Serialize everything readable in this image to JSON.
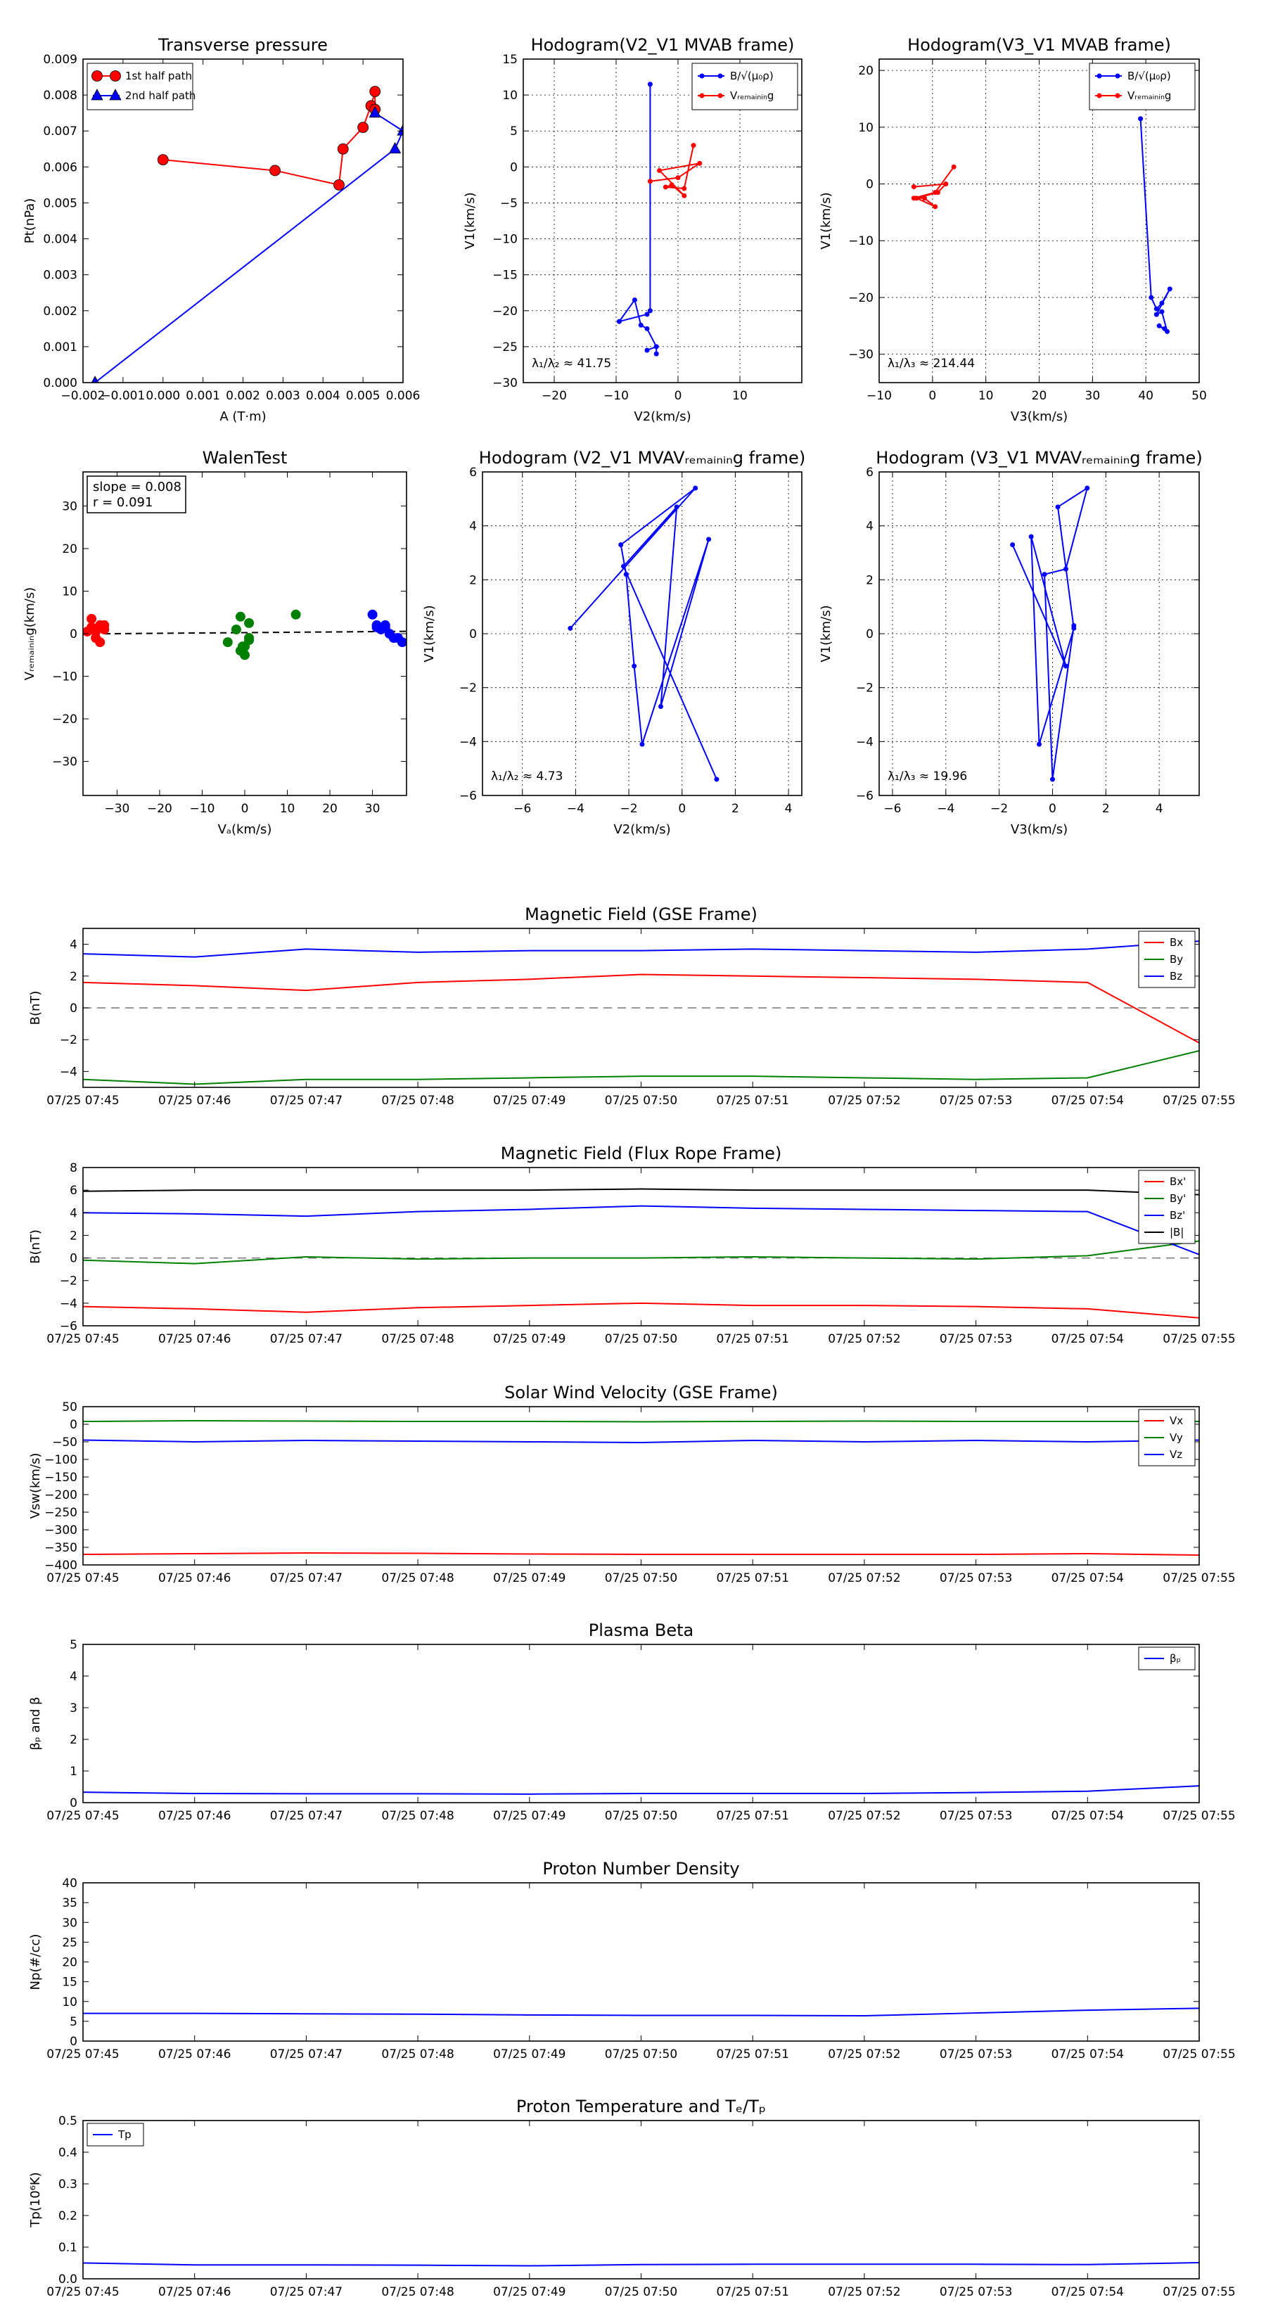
{
  "chart_data": [
    {
      "id": "p1",
      "type": "line",
      "title": "Transverse pressure",
      "xlabel": "A (T·m)",
      "ylabel": "Pt(nPa)",
      "xlim": [
        -0.002,
        0.006
      ],
      "ylim": [
        0,
        0.009
      ],
      "xticks": [
        -0.002,
        -0.001,
        0.0,
        0.001,
        0.002,
        0.003,
        0.004,
        0.005,
        0.006
      ],
      "xtick_labels": [
        "−0.002",
        "−0.001",
        "0.000",
        "0.001",
        "0.002",
        "0.003",
        "0.004",
        "0.005",
        "0.006"
      ],
      "yticks": [
        0,
        0.001,
        0.002,
        0.003,
        0.004,
        0.005,
        0.006,
        0.007,
        0.008,
        0.009
      ],
      "ytick_labels": [
        "0.000",
        "0.001",
        "0.002",
        "0.003",
        "0.004",
        "0.005",
        "0.006",
        "0.007",
        "0.008",
        "0.009"
      ],
      "grid": false,
      "legend": "top-left",
      "series": [
        {
          "name": "1st half path",
          "color": "#ff0000",
          "marker": "circle",
          "x": [
            0.0,
            0.0028,
            0.0044,
            0.0045,
            0.005,
            0.0052,
            0.0053,
            0.0053
          ],
          "y": [
            0.0062,
            0.0059,
            0.0055,
            0.0065,
            0.0071,
            0.0077,
            0.0081,
            0.0076
          ]
        },
        {
          "name": "2nd half path",
          "color": "#0000ff",
          "marker": "triangle",
          "x": [
            -0.0017,
            0.0058,
            0.006,
            0.0053
          ],
          "y": [
            0.0,
            0.0065,
            0.007,
            0.0075
          ]
        }
      ]
    },
    {
      "id": "p2",
      "type": "line",
      "title": "Hodogram(V2_V1 MVAB frame)",
      "xlabel": "V2(km/s)",
      "ylabel": "V1(km/s)",
      "xlim": [
        -25,
        20
      ],
      "ylim": [
        -30,
        15
      ],
      "xticks": [
        -20,
        -10,
        0,
        10
      ],
      "xtick_labels": [
        "−20",
        "−10",
        "0",
        "10"
      ],
      "yticks": [
        -30,
        -25,
        -20,
        -15,
        -10,
        -5,
        0,
        5,
        10,
        15
      ],
      "ytick_labels": [
        "−30",
        "−25",
        "−20",
        "−15",
        "−10",
        "−5",
        "0",
        "5",
        "10",
        "15"
      ],
      "grid": true,
      "legend": "top-right",
      "annotation": "λ₁/λ₂ ≈ 41.75",
      "series": [
        {
          "name": "B/√(μ₀ρ)",
          "color": "#0000ff",
          "marker": "dot",
          "x": [
            -4.5,
            -4.5,
            -5,
            -9.5,
            -7,
            -6,
            -5,
            -3.5,
            -5,
            -3.5,
            -3.5
          ],
          "y": [
            11.5,
            -20,
            -20.5,
            -21.5,
            -18.5,
            -22,
            -22.5,
            -25,
            -25.5,
            -25,
            -26
          ]
        },
        {
          "name": "Vᵣₑₘₐᵢₙᵢₙg",
          "color": "#ff0000",
          "marker": "dot",
          "x": [
            -4.5,
            0,
            3.5,
            -3,
            1,
            -1,
            -2,
            1,
            2.5
          ],
          "y": [
            -2,
            -1.5,
            0.5,
            -0.5,
            -4,
            -2.5,
            -2.8,
            -3,
            3
          ]
        }
      ]
    },
    {
      "id": "p3",
      "type": "line",
      "title": "Hodogram(V3_V1 MVAB frame)",
      "xlabel": "V3(km/s)",
      "ylabel": "V1(km/s)",
      "xlim": [
        -10,
        50
      ],
      "ylim": [
        -35,
        22
      ],
      "xticks": [
        -10,
        0,
        10,
        20,
        30,
        40,
        50
      ],
      "xtick_labels": [
        "−10",
        "0",
        "10",
        "20",
        "30",
        "40",
        "50"
      ],
      "yticks": [
        -30,
        -20,
        -10,
        0,
        10,
        20
      ],
      "ytick_labels": [
        "−30",
        "−20",
        "−10",
        "0",
        "10",
        "20"
      ],
      "grid": true,
      "legend": "top-right",
      "annotation": "λ₁/λ₃ ≈ 214.44",
      "series": [
        {
          "name": "B/√(μ₀ρ)",
          "color": "#0000ff",
          "marker": "dot",
          "x": [
            39,
            41,
            42,
            43,
            44.5,
            42,
            43,
            44,
            42.5,
            43.5
          ],
          "y": [
            11.5,
            -20,
            -22,
            -21,
            -18.5,
            -23,
            -22.5,
            -26,
            -25,
            -25.5
          ]
        },
        {
          "name": "Vᵣₑₘₐᵢₙᵢₙg",
          "color": "#ff0000",
          "marker": "dot",
          "x": [
            -3.5,
            2.5,
            1,
            -3,
            0.5,
            -1.5,
            -3.5,
            0.5,
            4
          ],
          "y": [
            -0.5,
            0,
            -1.5,
            -2.5,
            -4,
            -2.5,
            -2.5,
            -1.5,
            3
          ]
        }
      ]
    },
    {
      "id": "p4",
      "type": "scatter",
      "title": "WalenTest",
      "xlabel": "Vₐ(km/s)",
      "ylabel": "Vᵣₑₘₐᵢₙᵢₙg(km/s)",
      "xlim": [
        -38,
        38
      ],
      "ylim": [
        -38,
        38
      ],
      "xticks": [
        -30,
        -20,
        -10,
        0,
        10,
        20,
        30
      ],
      "xtick_labels": [
        "−30",
        "−20",
        "−10",
        "0",
        "10",
        "20",
        "30"
      ],
      "yticks": [
        -30,
        -20,
        -10,
        0,
        10,
        20,
        30
      ],
      "ytick_labels": [
        "−30",
        "−20",
        "−10",
        "0",
        "10",
        "20",
        "30"
      ],
      "grid": false,
      "annotation_box": [
        "slope = 0.008",
        "r = 0.091"
      ],
      "fit_line": {
        "slope": 0.008,
        "intercept": 0.25
      },
      "series": [
        {
          "color": "#ff0000",
          "x": [
            -37,
            -35,
            -36,
            -34,
            -33,
            -35,
            -34,
            -36,
            -33,
            -35
          ],
          "y": [
            0.5,
            1,
            3.5,
            2,
            1,
            -1,
            -2,
            1.5,
            2,
            0.5
          ]
        },
        {
          "color": "#008000",
          "x": [
            -4,
            -2,
            -1,
            1,
            0,
            -1,
            1,
            -0.5,
            0,
            12,
            1
          ],
          "y": [
            -2,
            1,
            4,
            2.5,
            -3,
            -4,
            -1,
            -3,
            -5,
            4.5,
            -1.5
          ]
        },
        {
          "color": "#0000ff",
          "x": [
            30,
            31,
            32,
            33,
            35,
            34,
            36,
            37,
            33,
            31
          ],
          "y": [
            4.5,
            2,
            1,
            2,
            -1,
            0,
            -1,
            -2,
            1.5,
            1.5
          ]
        }
      ]
    },
    {
      "id": "p5",
      "type": "line",
      "title": "Hodogram (V2_V1 MVAVᵣₑₘₐᵢₙᵢₙg frame)",
      "xlabel": "V2(km/s)",
      "ylabel": "V1(km/s)",
      "xlim": [
        -7.5,
        4.5
      ],
      "ylim": [
        -6,
        6
      ],
      "xticks": [
        -6,
        -4,
        -2,
        0,
        2,
        4
      ],
      "xtick_labels": [
        "−6",
        "−4",
        "−2",
        "0",
        "2",
        "4"
      ],
      "yticks": [
        -6,
        -4,
        -2,
        0,
        2,
        4,
        6
      ],
      "ytick_labels": [
        "−6",
        "−4",
        "−2",
        "0",
        "2",
        "4",
        "6"
      ],
      "grid": true,
      "annotation": "λ₁/λ₂ ≈ 4.73",
      "series": [
        {
          "color": "#0000ff",
          "marker": "dot",
          "x": [
            -4.2,
            0.5,
            -2.3,
            -2.1,
            -1.8,
            -1.5,
            1,
            -0.8,
            -0.2,
            -2.2,
            1.3
          ],
          "y": [
            0.2,
            5.4,
            3.3,
            2.2,
            -1.2,
            -4.1,
            3.5,
            -2.7,
            4.7,
            2.5,
            -5.4
          ]
        }
      ]
    },
    {
      "id": "p6",
      "type": "line",
      "title": "Hodogram (V3_V1 MVAVᵣₑₘₐᵢₙᵢₙg frame)",
      "xlabel": "V3(km/s)",
      "ylabel": "V1(km/s)",
      "xlim": [
        -6.5,
        5.5
      ],
      "ylim": [
        -6,
        6
      ],
      "xticks": [
        -6,
        -4,
        -2,
        0,
        2,
        4
      ],
      "xtick_labels": [
        "−6",
        "−4",
        "−2",
        "0",
        "2",
        "4"
      ],
      "yticks": [
        -6,
        -4,
        -2,
        0,
        2,
        4,
        6
      ],
      "ytick_labels": [
        "−6",
        "−4",
        "−2",
        "0",
        "2",
        "4",
        "6"
      ],
      "grid": true,
      "annotation": "λ₁/λ₃ ≈ 19.96",
      "series": [
        {
          "color": "#0000ff",
          "marker": "dot",
          "x": [
            -1.5,
            0.5,
            -0.8,
            -0.5,
            0.8,
            0.2,
            1.3,
            0.5,
            -0.3,
            0,
            0.8
          ],
          "y": [
            3.3,
            -1.2,
            3.6,
            -4.1,
            0.2,
            4.7,
            5.4,
            2.4,
            2.2,
            -5.4,
            0.3
          ]
        }
      ]
    },
    {
      "id": "t1",
      "type": "line",
      "title": "Magnetic Field (GSE Frame)",
      "ylabel": "B(nT)",
      "categories": [
        "07/25 07:45",
        "07/25 07:46",
        "07/25 07:47",
        "07/25 07:48",
        "07/25 07:49",
        "07/25 07:50",
        "07/25 07:51",
        "07/25 07:52",
        "07/25 07:53",
        "07/25 07:54",
        "07/25 07:55"
      ],
      "ylim": [
        -5,
        5
      ],
      "yticks": [
        -4,
        -2,
        0,
        2,
        4
      ],
      "ytick_labels": [
        "−4",
        "−2",
        "0",
        "2",
        "4"
      ],
      "zero_line": true,
      "legend": "top-right",
      "series": [
        {
          "name": "Bx",
          "color": "#ff0000",
          "values": [
            1.6,
            1.4,
            1.1,
            1.6,
            1.8,
            2.1,
            2.0,
            1.9,
            1.8,
            1.6,
            -2.2
          ]
        },
        {
          "name": "By",
          "color": "#008000",
          "values": [
            -4.5,
            -4.8,
            -4.5,
            -4.5,
            -4.4,
            -4.3,
            -4.3,
            -4.4,
            -4.5,
            -4.4,
            -2.7
          ]
        },
        {
          "name": "Bz",
          "color": "#0000ff",
          "values": [
            3.4,
            3.2,
            3.7,
            3.5,
            3.6,
            3.6,
            3.7,
            3.6,
            3.5,
            3.7,
            4.2
          ]
        }
      ]
    },
    {
      "id": "t2",
      "type": "line",
      "title": "Magnetic Field (Flux Rope Frame)",
      "ylabel": "B(nT)",
      "categories": [
        "07/25 07:45",
        "07/25 07:46",
        "07/25 07:47",
        "07/25 07:48",
        "07/25 07:49",
        "07/25 07:50",
        "07/25 07:51",
        "07/25 07:52",
        "07/25 07:53",
        "07/25 07:54",
        "07/25 07:55"
      ],
      "ylim": [
        -6,
        8
      ],
      "yticks": [
        -6,
        -4,
        -2,
        0,
        2,
        4,
        6,
        8
      ],
      "ytick_labels": [
        "−6",
        "−4",
        "−2",
        "0",
        "2",
        "4",
        "6",
        "8"
      ],
      "zero_line": true,
      "legend": "top-right",
      "series": [
        {
          "name": "Bx'",
          "color": "#ff0000",
          "values": [
            -4.3,
            -4.5,
            -4.8,
            -4.4,
            -4.2,
            -4.0,
            -4.2,
            -4.2,
            -4.3,
            -4.5,
            -5.3
          ]
        },
        {
          "name": "By'",
          "color": "#008000",
          "values": [
            -0.2,
            -0.5,
            0.1,
            -0.1,
            0.0,
            0.0,
            0.1,
            0.0,
            -0.1,
            0.2,
            1.5
          ]
        },
        {
          "name": "Bz'",
          "color": "#0000ff",
          "values": [
            4.0,
            3.9,
            3.7,
            4.1,
            4.3,
            4.6,
            4.4,
            4.3,
            4.2,
            4.1,
            0.3
          ]
        },
        {
          "name": "|B|",
          "color": "#000000",
          "values": [
            5.9,
            6.0,
            6.0,
            6.0,
            6.0,
            6.1,
            6.0,
            6.0,
            6.0,
            6.0,
            5.6
          ]
        }
      ]
    },
    {
      "id": "t3",
      "type": "line",
      "title": "Solar Wind Velocity (GSE Frame)",
      "ylabel": "Vsw(km/s)",
      "categories": [
        "07/25 07:45",
        "07/25 07:46",
        "07/25 07:47",
        "07/25 07:48",
        "07/25 07:49",
        "07/25 07:50",
        "07/25 07:51",
        "07/25 07:52",
        "07/25 07:53",
        "07/25 07:54",
        "07/25 07:55"
      ],
      "ylim": [
        -400,
        50
      ],
      "yticks": [
        -400,
        -350,
        -300,
        -250,
        -200,
        -150,
        -100,
        -50,
        0,
        50
      ],
      "ytick_labels": [
        "−400",
        "−350",
        "−300",
        "−250",
        "−200",
        "−150",
        "−100",
        "−50",
        "0",
        "50"
      ],
      "legend": "top-right",
      "series": [
        {
          "name": "Vx",
          "color": "#ff0000",
          "values": [
            -370,
            -368,
            -366,
            -367,
            -369,
            -370,
            -370,
            -370,
            -370,
            -368,
            -372
          ]
        },
        {
          "name": "Vy",
          "color": "#008000",
          "values": [
            8,
            10,
            9,
            8,
            8,
            7,
            8,
            9,
            8,
            8,
            8
          ]
        },
        {
          "name": "Vz",
          "color": "#0000ff",
          "values": [
            -45,
            -50,
            -46,
            -48,
            -50,
            -52,
            -46,
            -50,
            -46,
            -50,
            -45
          ]
        }
      ]
    },
    {
      "id": "t4",
      "type": "line",
      "title": "Plasma Beta",
      "ylabel": "βₚ and β",
      "categories": [
        "07/25 07:45",
        "07/25 07:46",
        "07/25 07:47",
        "07/25 07:48",
        "07/25 07:49",
        "07/25 07:50",
        "07/25 07:51",
        "07/25 07:52",
        "07/25 07:53",
        "07/25 07:54",
        "07/25 07:55"
      ],
      "ylim": [
        0,
        5
      ],
      "yticks": [
        0,
        1,
        2,
        3,
        4,
        5
      ],
      "ytick_labels": [
        "0",
        "1",
        "2",
        "3",
        "4",
        "5"
      ],
      "legend": "top-right",
      "series": [
        {
          "name": "βₚ",
          "color": "#0000ff",
          "values": [
            0.33,
            0.29,
            0.28,
            0.28,
            0.27,
            0.29,
            0.29,
            0.29,
            0.32,
            0.36,
            0.53
          ]
        }
      ]
    },
    {
      "id": "t5",
      "type": "line",
      "title": "Proton Number Density",
      "ylabel": "Np(#/cc)",
      "categories": [
        "07/25 07:45",
        "07/25 07:46",
        "07/25 07:47",
        "07/25 07:48",
        "07/25 07:49",
        "07/25 07:50",
        "07/25 07:51",
        "07/25 07:52",
        "07/25 07:53",
        "07/25 07:54",
        "07/25 07:55"
      ],
      "ylim": [
        0,
        40
      ],
      "yticks": [
        0,
        5,
        10,
        15,
        20,
        25,
        30,
        35,
        40
      ],
      "ytick_labels": [
        "0",
        "5",
        "10",
        "15",
        "20",
        "25",
        "30",
        "35",
        "40"
      ],
      "series": [
        {
          "color": "#0000ff",
          "values": [
            7.0,
            7.0,
            6.9,
            6.8,
            6.6,
            6.5,
            6.5,
            6.4,
            7.1,
            7.8,
            8.3
          ]
        }
      ]
    },
    {
      "id": "t6",
      "type": "line",
      "title": "Proton Temperature and Tₑ/Tₚ",
      "ylabel": "Tp(10⁶K)",
      "categories": [
        "07/25 07:45",
        "07/25 07:46",
        "07/25 07:47",
        "07/25 07:48",
        "07/25 07:49",
        "07/25 07:50",
        "07/25 07:51",
        "07/25 07:52",
        "07/25 07:53",
        "07/25 07:54",
        "07/25 07:55"
      ],
      "ylim": [
        0,
        0.5
      ],
      "yticks": [
        0,
        0.1,
        0.2,
        0.3,
        0.4,
        0.5
      ],
      "ytick_labels": [
        "0.0",
        "0.1",
        "0.2",
        "0.3",
        "0.4",
        "0.5"
      ],
      "legend": "top-left",
      "series": [
        {
          "name": "Tp",
          "color": "#0000ff",
          "values": [
            0.05,
            0.044,
            0.044,
            0.043,
            0.041,
            0.045,
            0.046,
            0.046,
            0.046,
            0.045,
            0.051
          ]
        }
      ]
    }
  ]
}
